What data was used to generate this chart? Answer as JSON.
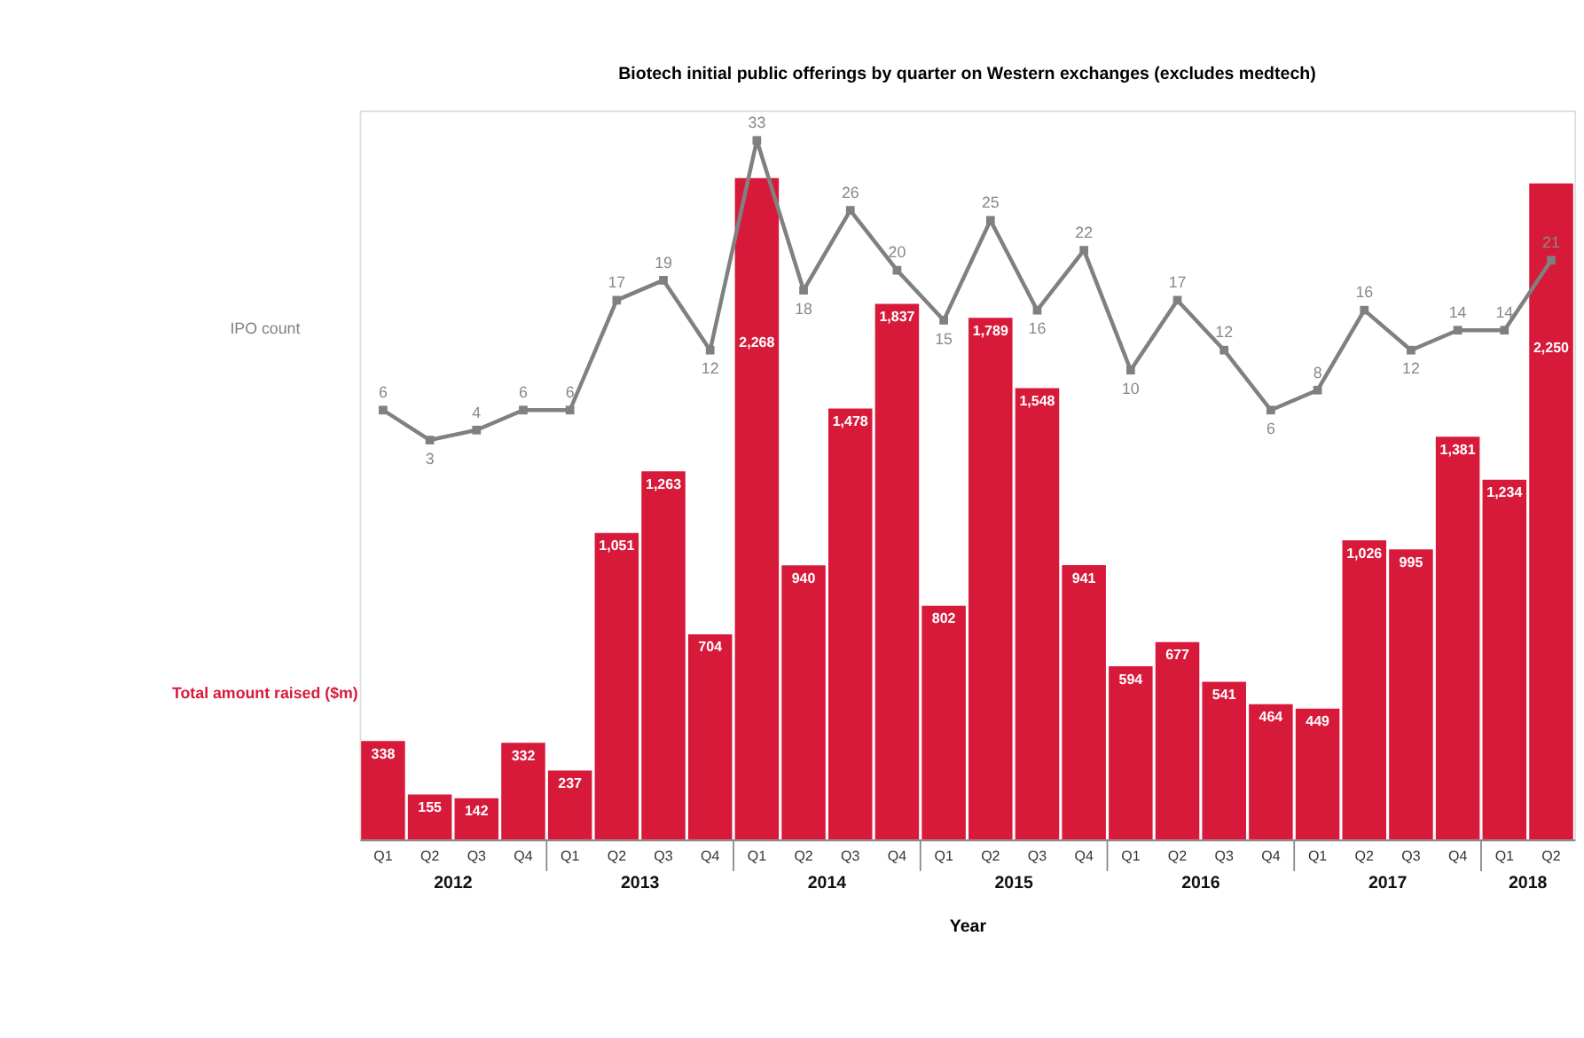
{
  "chart_data": {
    "type": "bar",
    "title": "Biotech initial public offerings by quarter on Western exchanges (excludes medtech)",
    "xlabel": "Year",
    "categories": [
      "Q1",
      "Q2",
      "Q3",
      "Q4",
      "Q1",
      "Q2",
      "Q3",
      "Q4",
      "Q1",
      "Q2",
      "Q3",
      "Q4",
      "Q1",
      "Q2",
      "Q3",
      "Q4",
      "Q1",
      "Q2",
      "Q3",
      "Q4",
      "Q1",
      "Q2",
      "Q3",
      "Q4",
      "Q1",
      "Q2"
    ],
    "annotations": [
      "2012",
      "2013",
      "2014",
      "2015",
      "2016",
      "2017",
      "2018"
    ],
    "series": [
      {
        "name": "Total amount raised ($m)",
        "color": "#d71a3a",
        "values": [
          338,
          155,
          142,
          332,
          237,
          1051,
          1263,
          704,
          2268,
          940,
          1478,
          1837,
          802,
          1789,
          1548,
          941,
          594,
          677,
          541,
          464,
          449,
          1026,
          995,
          1381,
          1234,
          2250
        ],
        "value_labels": [
          "338",
          "155",
          "142",
          "332",
          "237",
          "1,051",
          "1,263",
          "704",
          "2,268",
          "940",
          "1,478",
          "1,837",
          "802",
          "1,789",
          "1,548",
          "941",
          "594",
          "677",
          "541",
          "464",
          "449",
          "1,026",
          "995",
          "1,381",
          "1,234",
          "2,250"
        ]
      },
      {
        "name": "IPO count",
        "type": "line",
        "axis": "y2",
        "color": "#808080",
        "values": [
          6,
          3,
          4,
          6,
          6,
          17,
          19,
          12,
          33,
          18,
          26,
          20,
          15,
          25,
          16,
          22,
          10,
          17,
          12,
          6,
          8,
          16,
          12,
          14,
          14,
          21
        ]
      }
    ],
    "ylim": [
      0,
      2500
    ],
    "y2lim": [
      -37,
      36
    ],
    "data_labels": true,
    "marker": "square",
    "line_style": "solid",
    "grid": false,
    "legend": false,
    "tick_labels": "x"
  }
}
